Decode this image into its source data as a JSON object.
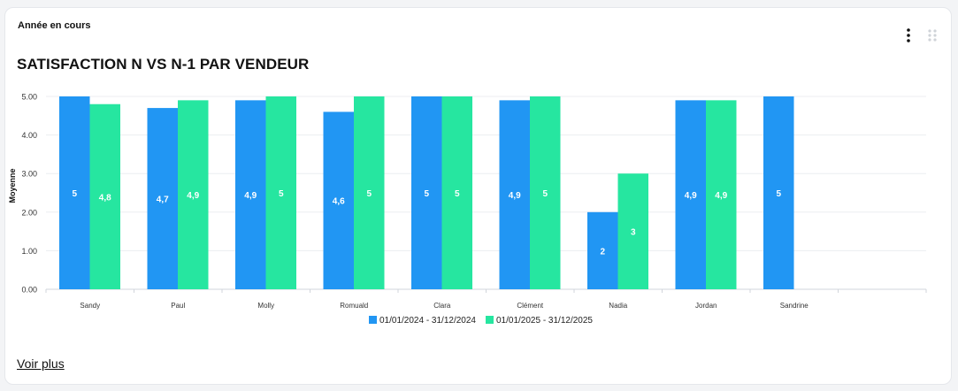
{
  "card": {
    "period_label": "Année en cours",
    "title": "SATISFACTION N VS N-1 PAR VENDEUR",
    "menu_icon": "more-vertical-icon",
    "drag_icon": "drag-handle-icon",
    "see_more_label": "Voir plus"
  },
  "chart_data": {
    "type": "bar",
    "title": "",
    "ylabel": "Moyenne",
    "xlabel": "",
    "ylim": [
      0,
      5
    ],
    "yticks": [
      "0.00",
      "1.00",
      "2.00",
      "3.00",
      "4.00",
      "5.00"
    ],
    "grid": true,
    "legend_position": "bottom",
    "categories": [
      "Sandy",
      "Paul",
      "Molly",
      "Romuald",
      "Clara",
      "Clément",
      "Nadia",
      "Jordan",
      "Sandrine",
      ""
    ],
    "series": [
      {
        "name": "01/01/2024 - 31/12/2024",
        "color": "#2196f3",
        "values": [
          5,
          4.7,
          4.9,
          4.6,
          5,
          4.9,
          2,
          4.9,
          5,
          null
        ],
        "labels": [
          "5",
          "4,7",
          "4,9",
          "4,6",
          "5",
          "4,9",
          "2",
          "4,9",
          "5",
          ""
        ]
      },
      {
        "name": "01/01/2025 - 31/12/2025",
        "color": "#26e6a0",
        "values": [
          4.8,
          4.9,
          5,
          5,
          5,
          5,
          3,
          4.9,
          null,
          null
        ],
        "labels": [
          "4,8",
          "4,9",
          "5",
          "5",
          "5",
          "5",
          "3",
          "4,9",
          "",
          ""
        ]
      }
    ]
  }
}
